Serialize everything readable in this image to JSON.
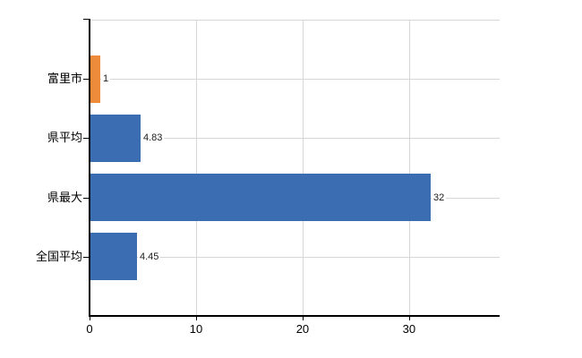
{
  "chart_data": {
    "type": "bar",
    "orientation": "horizontal",
    "title": "",
    "xlabel": "",
    "ylabel": "",
    "categories": [
      "富里市",
      "県平均",
      "県最大",
      "全国平均"
    ],
    "values": [
      1,
      4.83,
      32,
      4.45
    ],
    "value_labels": [
      "1",
      "4.83",
      "32",
      "4.45"
    ],
    "bar_colors": [
      "#EE8B3A",
      "#3A6DB2",
      "#3A6DB2",
      "#3A6DB2"
    ],
    "x_ticks": [
      0,
      10,
      20,
      30
    ],
    "x_tick_labels": [
      "0",
      "10",
      "20",
      "30"
    ],
    "xlim": [
      0,
      38.5
    ],
    "grid": true,
    "legend": "none",
    "colors": {
      "highlight_bar": "#EE8B3A",
      "default_bar": "#3A6DB2",
      "gridline": "#d6d6d6",
      "axis": "#000000",
      "text": "#000000",
      "background": "#ffffff"
    }
  }
}
